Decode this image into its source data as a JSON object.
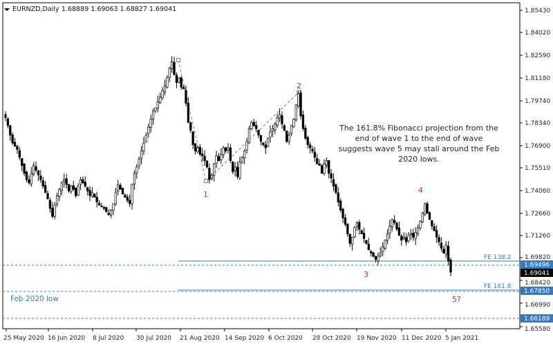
{
  "chart_data": {
    "type": "candlestick",
    "header": {
      "symbol": "EURNZD,Daily",
      "ohlc": "1.68889 1.69063 1.68827 1.69041"
    },
    "y_axis_ticks": [
      "1.85430",
      "1.84020",
      "1.82590",
      "1.81180",
      "1.79740",
      "1.78340",
      "1.76900",
      "1.75510",
      "1.74060",
      "1.72660",
      "1.71260",
      "1.69820",
      "1.68420",
      "1.66990",
      "1.65580"
    ],
    "x_axis_ticks": [
      "25 May 2020",
      "16 Jun 2020",
      "8 Jul 2020",
      "30 Jul 2020",
      "21 Aug 2020",
      "14 Sep 2020",
      "6 Oct 2020",
      "28 Oct 2020",
      "19 Nov 2020",
      "11 Dec 2020",
      "5 Jan 2021"
    ],
    "price_boxes": [
      {
        "id": "upper",
        "value": "1.69496"
      },
      {
        "id": "current",
        "value": "1.69041"
      },
      {
        "id": "fe161",
        "value": "1.67850"
      },
      {
        "id": "bottom",
        "value": "1.66189"
      }
    ],
    "fe_labels": {
      "fe138": "FE 138.2",
      "fe161": "FE 161.8"
    },
    "feb_low_label": "Feb 2020 low",
    "annotation": [
      "The 161.8% Fibonacci projection from the",
      "end of wave 1 to the end of wave",
      "suggests wave 5 may stall around the Feb",
      "2020 lows."
    ],
    "wave_labels": [
      "1",
      "2",
      "3",
      "4",
      "5?"
    ],
    "path_values": [
      1.787,
      1.782,
      1.776,
      1.771,
      1.769,
      1.767,
      1.762,
      1.757,
      1.752,
      1.748,
      1.746,
      1.752,
      1.757,
      1.754,
      1.751,
      1.748,
      1.744,
      1.74,
      1.736,
      1.73,
      1.725,
      1.732,
      1.738,
      1.742,
      1.746,
      1.748,
      1.745,
      1.741,
      1.744,
      1.742,
      1.738,
      1.744,
      1.748,
      1.746,
      1.744,
      1.741,
      1.738,
      1.74,
      1.737,
      1.734,
      1.732,
      1.731,
      1.73,
      1.728,
      1.726,
      1.729,
      1.733,
      1.74,
      1.745,
      1.742,
      1.739,
      1.737,
      1.735,
      1.733,
      1.745,
      1.752,
      1.756,
      1.761,
      1.766,
      1.771,
      1.776,
      1.781,
      1.786,
      1.791,
      1.793,
      1.797,
      1.8,
      1.804,
      1.807,
      1.812,
      1.818,
      1.822,
      1.814,
      1.809,
      1.812,
      1.806,
      1.805,
      1.796,
      1.784,
      1.779,
      1.77,
      1.766,
      1.768,
      1.764,
      1.763,
      1.76,
      1.756,
      1.748,
      1.751,
      1.758,
      1.763,
      1.76,
      1.764,
      1.768,
      1.766,
      1.768,
      1.76,
      1.753,
      1.756,
      1.75,
      1.759,
      1.762,
      1.766,
      1.772,
      1.78,
      1.784,
      1.782,
      1.78,
      1.776,
      1.772,
      1.77,
      1.768,
      1.774,
      1.778,
      1.78,
      1.783,
      1.787,
      1.789,
      1.783,
      1.779,
      1.772,
      1.776,
      1.782,
      1.786,
      1.795,
      1.802,
      1.788,
      1.78,
      1.774,
      1.77,
      1.768,
      1.766,
      1.762,
      1.758,
      1.757,
      1.752,
      1.758,
      1.76,
      1.752,
      1.749,
      1.744,
      1.74,
      1.734,
      1.729,
      1.724,
      1.72,
      1.714,
      1.708,
      1.712,
      1.718,
      1.721,
      1.717,
      1.714,
      1.711,
      1.708,
      1.704,
      1.702,
      1.7,
      1.698,
      1.7,
      1.702,
      1.706,
      1.71,
      1.714,
      1.719,
      1.723,
      1.721,
      1.717,
      1.713,
      1.71,
      1.712,
      1.709,
      1.713,
      1.714,
      1.712,
      1.715,
      1.718,
      1.722,
      1.727,
      1.733,
      1.727,
      1.723,
      1.719,
      1.716,
      1.712,
      1.709,
      1.705,
      1.702,
      1.707,
      1.697,
      1.69
    ]
  }
}
